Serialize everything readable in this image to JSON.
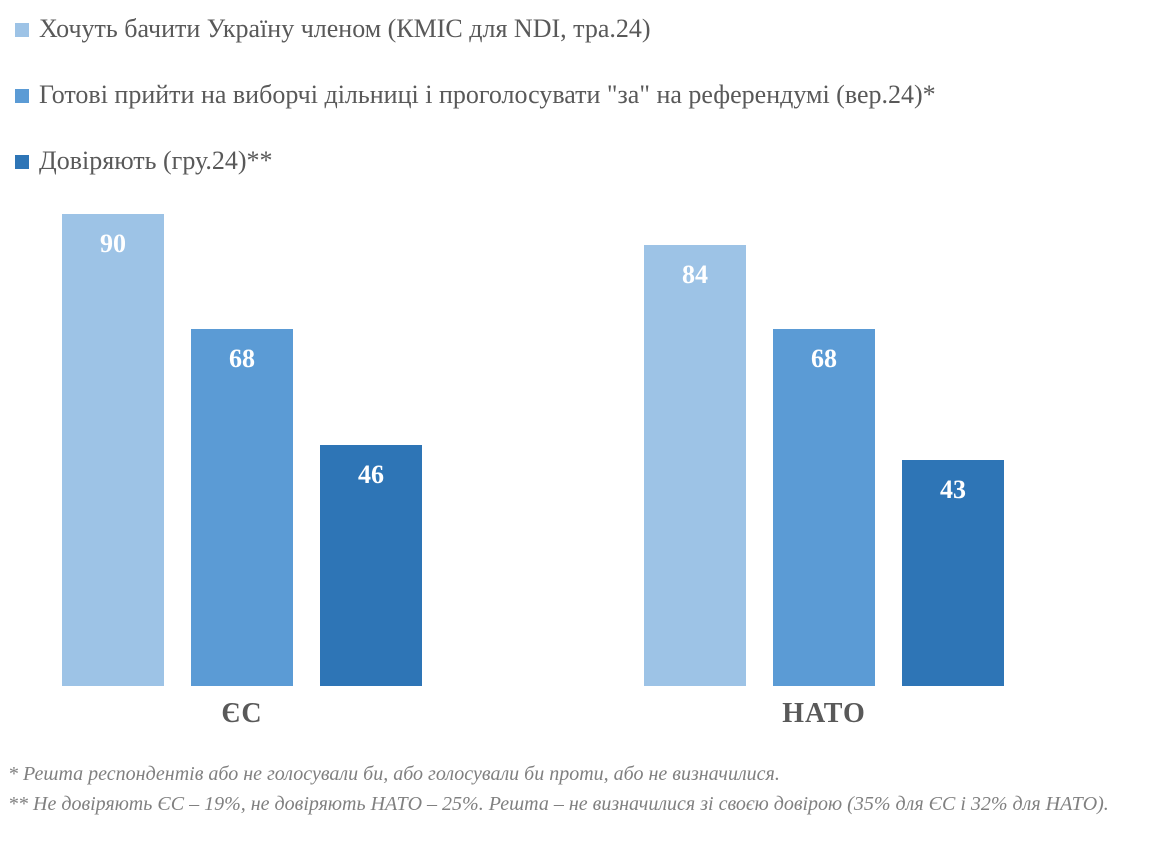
{
  "legend": {
    "items": [
      {
        "label": "Хочуть бачити Україну членом (КМІС для NDI, тра.24)",
        "color": "#9DC3E6"
      },
      {
        "label": "Готові прийти на виборчі дільниці і проголосувати \"за\" на референдумі (вер.24)*",
        "color": "#5B9BD5"
      },
      {
        "label": "Довіряють (гру.24)**",
        "color": "#2E75B6"
      }
    ]
  },
  "chart_data": {
    "type": "bar",
    "categories": [
      "ЄС",
      "НАТО"
    ],
    "series": [
      {
        "name": "Хочуть бачити Україну членом (КМІС для NDI, тра.24)",
        "color": "#9DC3E6",
        "values": [
          90,
          84
        ]
      },
      {
        "name": "Готові прийти на виборчі дільниці і проголосувати \"за\" на референдумі (вер.24)*",
        "color": "#5B9BD5",
        "values": [
          68,
          68
        ]
      },
      {
        "name": "Довіряють (гру.24)**",
        "color": "#2E75B6",
        "values": [
          46,
          43
        ]
      }
    ],
    "ylim": [
      0,
      90
    ],
    "grid": false,
    "axes_visible": false,
    "legend_position": "top-left",
    "data_labels": "inside-top-white-bold",
    "title": "",
    "xlabel": "",
    "ylabel": ""
  },
  "footnotes": [
    "* Решта респондентів або не голосували би, або голосували би проти, або не визначилися.",
    "** Не довіряють ЄС – 19%, не довіряють НАТО – 25%. Решта – не визначилися зі своєю довірою (35% для ЄС і 32% для НАТО)."
  ]
}
